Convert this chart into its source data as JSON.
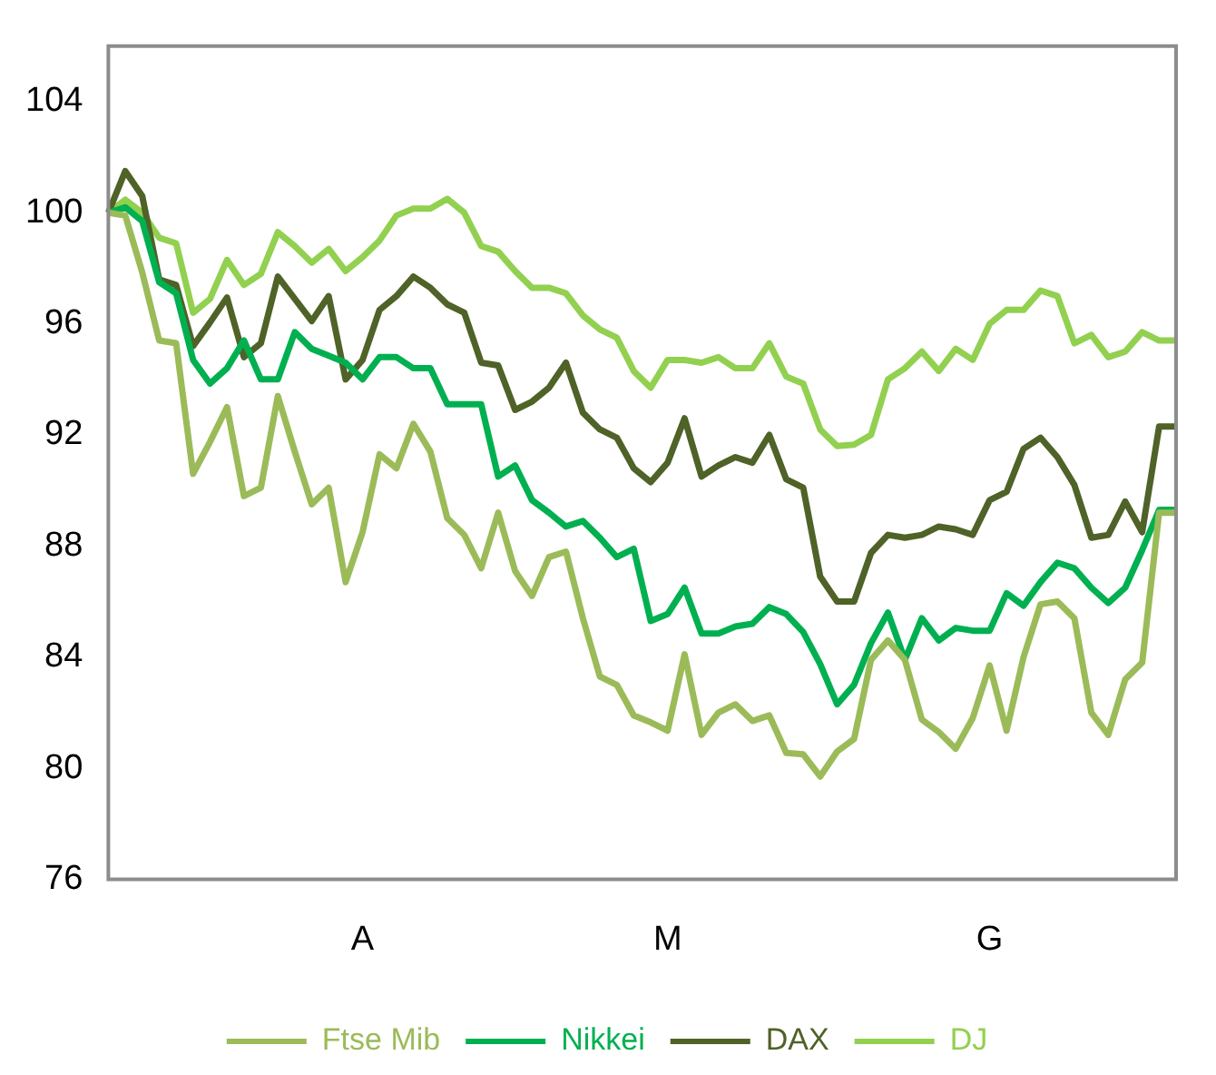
{
  "chart_data": {
    "type": "line",
    "categories": [
      null,
      null,
      null,
      null,
      null,
      null,
      null,
      null,
      null,
      null,
      null,
      null,
      null,
      null,
      null,
      "A",
      null,
      null,
      null,
      null,
      null,
      null,
      null,
      null,
      null,
      null,
      null,
      null,
      null,
      null,
      null,
      null,
      null,
      "M",
      null,
      null,
      null,
      null,
      null,
      null,
      null,
      null,
      null,
      null,
      null,
      null,
      null,
      null,
      null,
      null,
      null,
      null,
      "G",
      null,
      null,
      null,
      null,
      null,
      null,
      null,
      null,
      null,
      null,
      null
    ],
    "ylim": [
      76,
      106
    ],
    "yticks": [
      76,
      80,
      84,
      88,
      92,
      96,
      100,
      104
    ],
    "grid": false,
    "legend": "bottom",
    "marker": "none",
    "line_style": "solid",
    "series": [
      {
        "name": "Ftse Mib",
        "color": "#9bbb59",
        "values": [
          100,
          99.9,
          97.85,
          95.4,
          95.3,
          90.6,
          91.75,
          93,
          89.8,
          90.1,
          93.4,
          91.4,
          89.5,
          90.1,
          86.7,
          88.5,
          91.3,
          90.8,
          92.4,
          91.4,
          89,
          88.4,
          87.2,
          89.2,
          87.1,
          86.2,
          87.6,
          87.8,
          85.4,
          83.3,
          83,
          81.9,
          81.65,
          81.35,
          84.1,
          81.2,
          82,
          82.3,
          81.7,
          81.9,
          80.55,
          80.5,
          79.7,
          80.6,
          81.05,
          83.9,
          84.6,
          83.9,
          81.75,
          81.3,
          80.7,
          81.8,
          83.7,
          81.35,
          84,
          85.9,
          86,
          85.4,
          82,
          81.2,
          83.2,
          83.8,
          89.2,
          89.2
        ]
      },
      {
        "name": "Nikkei",
        "color": "#00b050",
        "values": [
          100,
          100.2,
          99.7,
          97.5,
          97.1,
          94.7,
          93.85,
          94.4,
          95.4,
          94,
          94,
          95.7,
          95.1,
          94.85,
          94.6,
          94,
          94.8,
          94.8,
          94.4,
          94.4,
          93.1,
          93.1,
          93.1,
          90.5,
          90.9,
          89.65,
          89.2,
          88.7,
          88.9,
          88.3,
          87.6,
          87.9,
          85.3,
          85.55,
          86.5,
          84.85,
          84.85,
          85.1,
          85.2,
          85.8,
          85.55,
          84.9,
          83.75,
          82.3,
          83,
          84.5,
          85.6,
          83.9,
          85.4,
          84.6,
          85.05,
          84.95,
          84.95,
          86.3,
          85.85,
          86.7,
          87.4,
          87.2,
          86.5,
          85.95,
          86.5,
          87.85,
          89.3,
          89.3
        ]
      },
      {
        "name": "DAX",
        "color": "#4f6228",
        "values": [
          100,
          101.5,
          100.6,
          97.6,
          97.4,
          95.2,
          96.05,
          96.95,
          94.8,
          95.3,
          97.7,
          96.9,
          96.1,
          97,
          94,
          94.7,
          96.5,
          97,
          97.7,
          97.3,
          96.7,
          96.4,
          94.6,
          94.5,
          92.9,
          93.2,
          93.7,
          94.6,
          92.8,
          92.2,
          91.9,
          90.8,
          90.3,
          91,
          92.6,
          90.5,
          90.9,
          91.2,
          91,
          92,
          90.4,
          90.1,
          86.9,
          86,
          86,
          87.75,
          88.4,
          88.3,
          88.4,
          88.7,
          88.6,
          88.4,
          89.65,
          89.95,
          91.5,
          91.9,
          91.2,
          90.2,
          88.3,
          88.4,
          89.6,
          88.5,
          92.3,
          92.3
        ]
      },
      {
        "name": "DJ",
        "color": "#92d050",
        "values": [
          100,
          100.47,
          100,
          99.1,
          98.9,
          96.4,
          96.9,
          98.3,
          97.4,
          97.8,
          99.3,
          98.8,
          98.2,
          98.7,
          97.9,
          98.4,
          99,
          99.9,
          100.15,
          100.15,
          100.5,
          100,
          98.8,
          98.6,
          97.9,
          97.3,
          97.3,
          97.1,
          96.3,
          95.8,
          95.5,
          94.3,
          93.7,
          94.7,
          94.7,
          94.6,
          94.8,
          94.4,
          94.4,
          95.3,
          94.1,
          93.85,
          92.2,
          91.6,
          91.65,
          92,
          94,
          94.4,
          95,
          94.3,
          95.1,
          94.7,
          96,
          96.5,
          96.5,
          97.2,
          97,
          95.3,
          95.6,
          94.8,
          95,
          95.7,
          95.4,
          95.4
        ]
      }
    ]
  }
}
